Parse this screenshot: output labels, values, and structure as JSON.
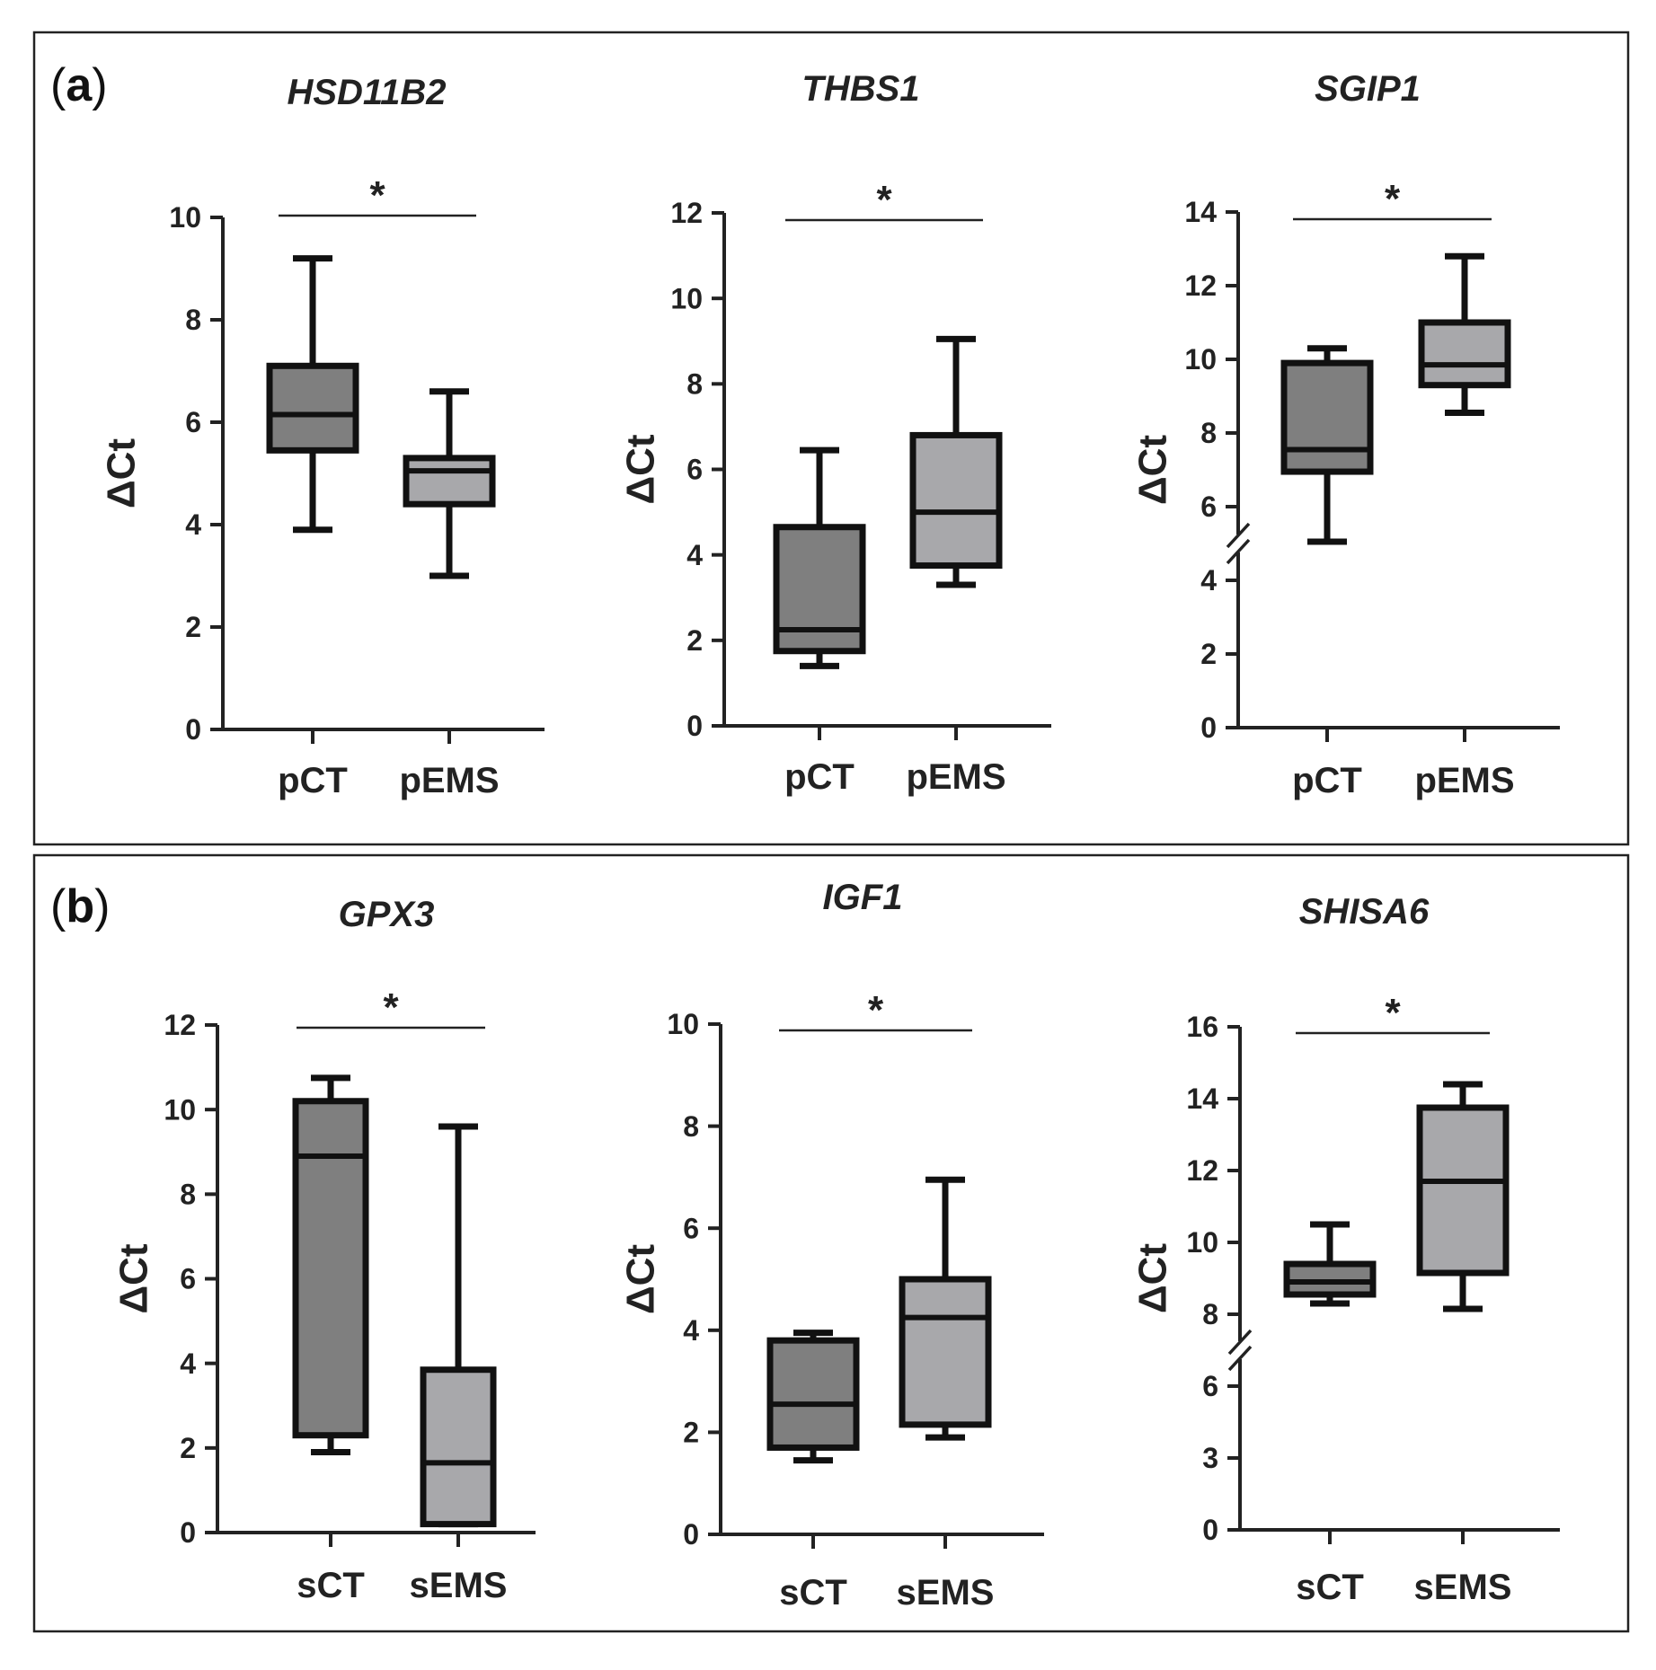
{
  "panels": [
    {
      "letter_open": "(",
      "letter": "a",
      "letter_close": ")"
    },
    {
      "letter_open": "(",
      "letter": "b",
      "letter_close": ")"
    }
  ],
  "colors": {
    "box_group_1": "#7f7f7f",
    "box_group_2": "#a8a8ab",
    "outline": "#111111"
  },
  "chart_data": [
    {
      "type": "box",
      "panel": "a",
      "title": "HSD11B2",
      "ylabel": "ΔCt",
      "ylim": [
        0,
        10
      ],
      "yticks": [
        0,
        2,
        4,
        6,
        8,
        10
      ],
      "axis_break": null,
      "categories": [
        "pCT",
        "pEMS"
      ],
      "boxes": [
        {
          "min": 3.9,
          "q1": 5.45,
          "median": 6.15,
          "q3": 7.1,
          "max": 9.2
        },
        {
          "min": 3.0,
          "q1": 4.4,
          "median": 5.05,
          "q3": 5.3,
          "max": 6.6
        }
      ],
      "significance": {
        "label": "*",
        "pair": [
          0,
          1
        ]
      }
    },
    {
      "type": "box",
      "panel": "a",
      "title": "THBS1",
      "ylabel": "ΔCt",
      "ylim": [
        0,
        12
      ],
      "yticks": [
        0,
        2,
        4,
        6,
        8,
        10,
        12
      ],
      "axis_break": null,
      "categories": [
        "pCT",
        "pEMS"
      ],
      "boxes": [
        {
          "min": 1.4,
          "q1": 1.75,
          "median": 2.25,
          "q3": 4.65,
          "max": 6.45
        },
        {
          "min": 3.3,
          "q1": 3.75,
          "median": 5.0,
          "q3": 6.8,
          "max": 9.05
        }
      ],
      "significance": {
        "label": "*",
        "pair": [
          0,
          1
        ]
      }
    },
    {
      "type": "box",
      "panel": "a",
      "title": "SGIP1",
      "ylabel": "ΔCt",
      "ylim": [
        0,
        14
      ],
      "yticks": [
        0,
        2,
        4,
        6,
        8,
        10,
        12,
        14
      ],
      "axis_break": [
        4,
        6
      ],
      "categories": [
        "pCT",
        "pEMS"
      ],
      "boxes": [
        {
          "min": 5.05,
          "q1": 6.95,
          "median": 7.55,
          "q3": 9.9,
          "max": 10.3
        },
        {
          "min": 8.55,
          "q1": 9.3,
          "median": 9.85,
          "q3": 11.0,
          "max": 12.8
        }
      ],
      "significance": {
        "label": "*",
        "pair": [
          0,
          1
        ]
      }
    },
    {
      "type": "box",
      "panel": "b",
      "title": "GPX3",
      "ylabel": "ΔCt",
      "ylim": [
        0,
        12
      ],
      "yticks": [
        0,
        2,
        4,
        6,
        8,
        10,
        12
      ],
      "axis_break": null,
      "categories": [
        "sCT",
        "sEMS"
      ],
      "boxes": [
        {
          "min": 1.9,
          "q1": 2.3,
          "median": 8.9,
          "q3": 10.2,
          "max": 10.75
        },
        {
          "min": 0.2,
          "q1": 0.2,
          "median": 1.65,
          "q3": 3.85,
          "max": 9.6
        }
      ],
      "significance": {
        "label": "*",
        "pair": [
          0,
          1
        ]
      }
    },
    {
      "type": "box",
      "panel": "b",
      "title": "IGF1",
      "ylabel": "ΔCt",
      "ylim": [
        0,
        10
      ],
      "yticks": [
        0,
        2,
        4,
        6,
        8,
        10
      ],
      "axis_break": null,
      "categories": [
        "sCT",
        "sEMS"
      ],
      "boxes": [
        {
          "min": 1.45,
          "q1": 1.7,
          "median": 2.55,
          "q3": 3.8,
          "max": 3.95
        },
        {
          "min": 1.9,
          "q1": 2.15,
          "median": 4.25,
          "q3": 5.0,
          "max": 6.95
        }
      ],
      "significance": {
        "label": "*",
        "pair": [
          0,
          1
        ]
      }
    },
    {
      "type": "box",
      "panel": "b",
      "title": "SHISA6",
      "ylabel": "ΔCt",
      "ylim": [
        0,
        16
      ],
      "yticks": [
        0,
        3,
        6,
        8,
        10,
        12,
        14,
        16
      ],
      "axis_break": [
        6,
        8
      ],
      "categories": [
        "sCT",
        "sEMS"
      ],
      "boxes": [
        {
          "min": 8.3,
          "q1": 8.55,
          "median": 8.9,
          "q3": 9.4,
          "max": 10.5
        },
        {
          "min": 8.15,
          "q1": 9.15,
          "median": 11.7,
          "q3": 13.75,
          "max": 14.4
        }
      ],
      "significance": {
        "label": "*",
        "pair": [
          0,
          1
        ]
      }
    }
  ]
}
